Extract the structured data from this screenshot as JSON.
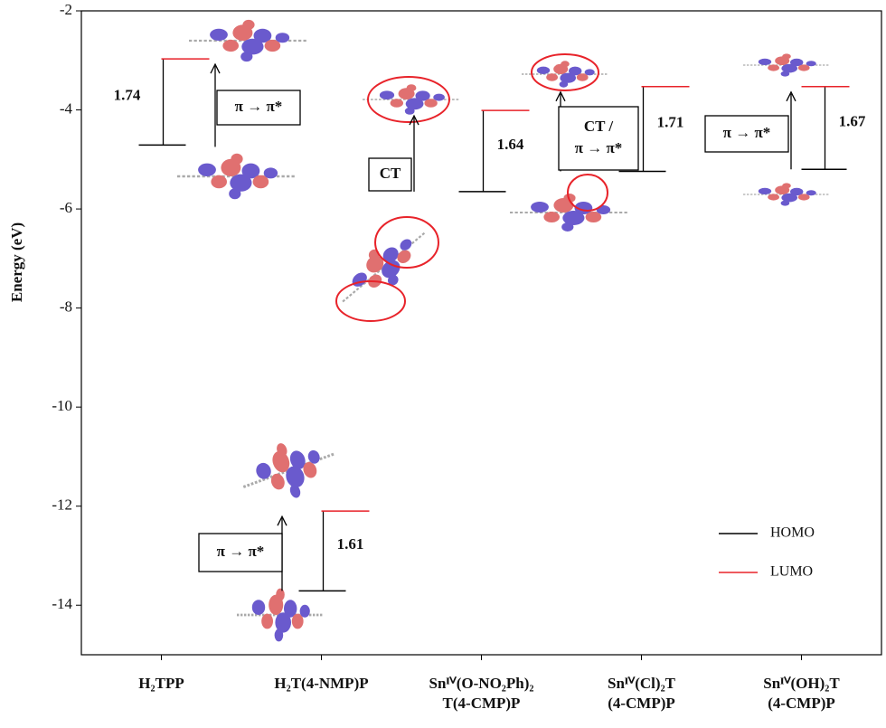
{
  "chart_data": {
    "type": "energy-levels",
    "y_label": "Energy (eV)",
    "categories": [
      [
        "H₂TPP"
      ],
      [
        "H₂T(4-NMP)P"
      ],
      [
        "Snᴵⱽ(O-NO₂Ph)₂",
        "T(4-CMP)P"
      ],
      [
        "Snᴵⱽ(Cl)₂T",
        "(4-CMP)P"
      ],
      [
        "Snᴵⱽ(OH)₂T",
        "(4-CMP)P"
      ]
    ],
    "series": [
      {
        "name": "HOMO",
        "color": "#000000",
        "values": [
          -4.71,
          -13.71,
          -5.65,
          -5.24,
          -5.2
        ]
      },
      {
        "name": "LUMO",
        "color": "#e8232a",
        "values": [
          -2.97,
          -12.1,
          -4.01,
          -3.53,
          -3.53
        ]
      }
    ],
    "gaps": [
      1.74,
      1.61,
      1.64,
      1.71,
      1.67
    ],
    "transitions": [
      [
        "π → π*"
      ],
      [
        "π → π*"
      ],
      [
        "CT"
      ],
      [
        "CT /",
        "π → π*"
      ],
      [
        "π → π*"
      ]
    ],
    "ylim": [
      -15,
      -2
    ],
    "yticks": [
      -2,
      -4,
      -6,
      -8,
      -10,
      -12,
      -14
    ],
    "legend": "lower right"
  }
}
